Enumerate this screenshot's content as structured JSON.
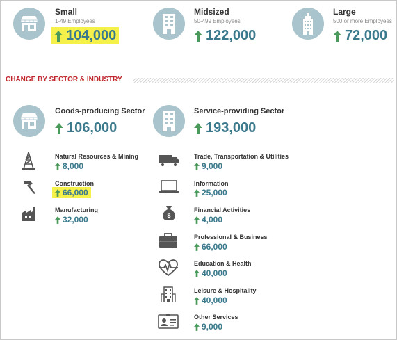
{
  "sizes": [
    {
      "name": "Small",
      "sub": "1-49 Employees",
      "value": "104,000",
      "icon": "storefront-icon",
      "highlighted": true
    },
    {
      "name": "Midsized",
      "sub": "50-499 Employees",
      "value": "122,000",
      "icon": "building-icon",
      "highlighted": false
    },
    {
      "name": "Large",
      "sub": "500 or more Employees",
      "value": "72,000",
      "icon": "skyscraper-icon",
      "highlighted": false
    }
  ],
  "section_title": "CHANGE BY SECTOR & INDUSTRY",
  "goods": {
    "title": "Goods-producing Sector",
    "value": "106,000",
    "items": [
      {
        "label": "Natural Resources & Mining",
        "value": "8,000",
        "icon": "oil-derrick-icon"
      },
      {
        "label": "Construction",
        "value": "66,000",
        "icon": "hammer-icon",
        "highlighted": true
      },
      {
        "label": "Manufacturing",
        "value": "32,000",
        "icon": "factory-icon"
      }
    ]
  },
  "service": {
    "title": "Service-providing Sector",
    "value": "193,000",
    "items": [
      {
        "label": "Trade, Transportation & Utilities",
        "value": "9,000",
        "icon": "truck-icon"
      },
      {
        "label": "Information",
        "value": "25,000",
        "icon": "laptop-icon"
      },
      {
        "label": "Financial Activities",
        "value": "4,000",
        "icon": "money-bag-icon"
      },
      {
        "label": "Professional & Business",
        "value": "66,000",
        "icon": "briefcase-icon"
      },
      {
        "label": "Education & Health",
        "value": "40,000",
        "icon": "heartbeat-icon"
      },
      {
        "label": "Leisure & Hospitality",
        "value": "40,000",
        "icon": "hotel-icon"
      },
      {
        "label": "Other Services",
        "value": "9,000",
        "icon": "id-card-icon"
      }
    ]
  },
  "colors": {
    "accent": "#3a7a8c",
    "arrow": "#4a9a5c",
    "circle": "#a9c4cc",
    "section": "#c0272d",
    "highlight": "#f6f04a"
  }
}
